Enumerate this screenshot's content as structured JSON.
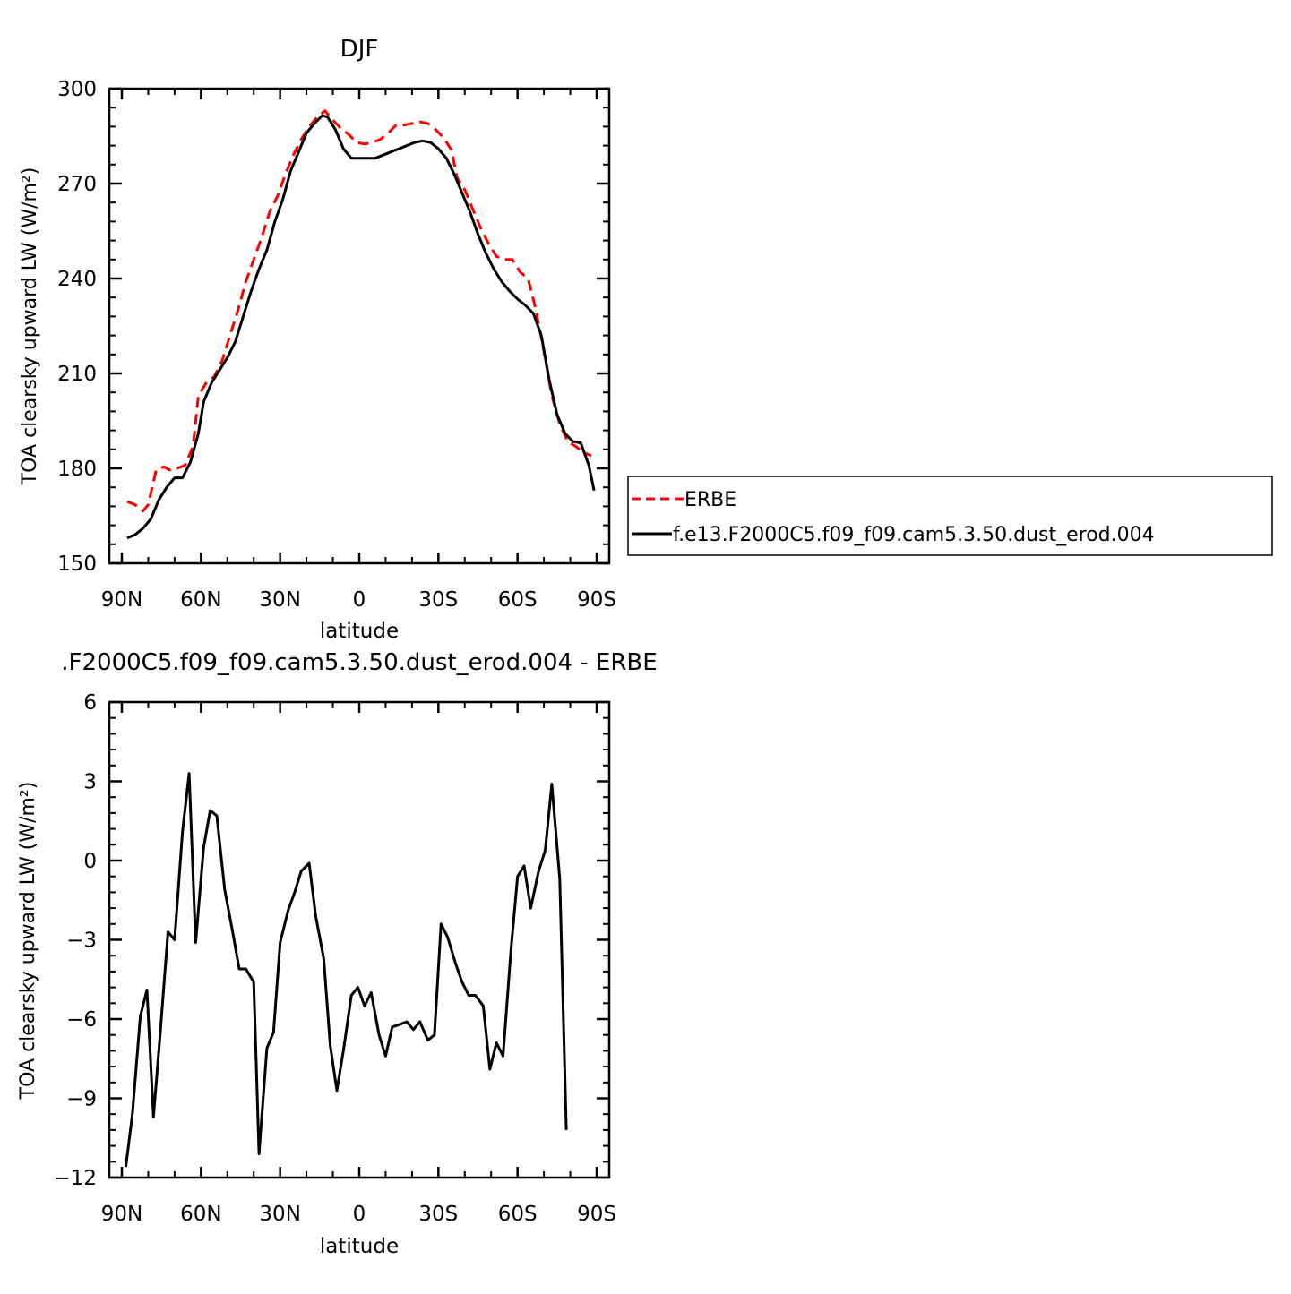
{
  "chart_data": [
    {
      "type": "line",
      "title": "DJF",
      "xlabel": "latitude",
      "ylabel": "TOA clearsky upward LW (W/m²)",
      "xlim": [
        -90,
        90
      ],
      "ylim": [
        150,
        300
      ],
      "x_ticks": [
        -90,
        -60,
        -30,
        0,
        30,
        60,
        90
      ],
      "x_tick_labels": [
        "90N",
        "60N",
        "30N",
        "0",
        "30S",
        "60S",
        "90S"
      ],
      "y_ticks": [
        150,
        180,
        210,
        240,
        270,
        300
      ],
      "y_tick_labels": [
        "150",
        "180",
        "210",
        "240",
        "270",
        "300"
      ],
      "legend_position": "right",
      "series": [
        {
          "name": "ERBE",
          "color": "#ff0000",
          "style": "dashed",
          "points": [
            [
              -88,
              169.5
            ],
            [
              -85,
              168.5
            ],
            [
              -82,
              166.5
            ],
            [
              -80,
              168.5
            ],
            [
              -77,
              179.5
            ],
            [
              -74,
              180.5
            ],
            [
              -72,
              179.5
            ],
            [
              -69,
              180
            ],
            [
              -66,
              181
            ],
            [
              -63,
              187
            ],
            [
              -61,
              203
            ],
            [
              -58,
              207
            ],
            [
              -55,
              209
            ],
            [
              -52,
              214
            ],
            [
              -49,
              222
            ],
            [
              -46,
              230
            ],
            [
              -43,
              239
            ],
            [
              -40,
              246
            ],
            [
              -37,
              253
            ],
            [
              -34,
              261
            ],
            [
              -31,
              266
            ],
            [
              -28,
              273
            ],
            [
              -25,
              279
            ],
            [
              -22,
              284
            ],
            [
              -19,
              288
            ],
            [
              -16,
              291
            ],
            [
              -13,
              293
            ],
            [
              -10,
              290
            ],
            [
              -7,
              287.5
            ],
            [
              -4,
              285.5
            ],
            [
              -1,
              283
            ],
            [
              2,
              282.5
            ],
            [
              5,
              283
            ],
            [
              8,
              284
            ],
            [
              11,
              286
            ],
            [
              14,
              288.5
            ],
            [
              17,
              288.5
            ],
            [
              20,
              289
            ],
            [
              23,
              289.5
            ],
            [
              26,
              289
            ],
            [
              29,
              287
            ],
            [
              32,
              284.5
            ],
            [
              35,
              280.5
            ],
            [
              37,
              272
            ],
            [
              40,
              268
            ],
            [
              43,
              262
            ],
            [
              46,
              256
            ],
            [
              49,
              251
            ],
            [
              52,
              247
            ],
            [
              55,
              246
            ],
            [
              58,
              246
            ],
            [
              61,
              242
            ],
            [
              64,
              240
            ],
            [
              67,
              230
            ],
            [
              70,
              217
            ],
            [
              73,
              203
            ],
            [
              76,
              194
            ],
            [
              79,
              188.5
            ],
            [
              82,
              187
            ],
            [
              85,
              185
            ],
            [
              88,
              184
            ]
          ]
        },
        {
          "name": "f.e13.F2000C5.f09_f09.cam5.3.50.dust_erod.004",
          "color": "#000000",
          "style": "solid",
          "points": [
            [
              -88,
              158
            ],
            [
              -85,
              159
            ],
            [
              -82,
              161
            ],
            [
              -79,
              164
            ],
            [
              -76,
              170
            ],
            [
              -73,
              174
            ],
            [
              -70,
              177
            ],
            [
              -67,
              177
            ],
            [
              -64,
              182
            ],
            [
              -61,
              191
            ],
            [
              -59,
              201
            ],
            [
              -56,
              207
            ],
            [
              -53,
              211
            ],
            [
              -50,
              215
            ],
            [
              -47,
              220
            ],
            [
              -44,
              228
            ],
            [
              -41,
              236
            ],
            [
              -38,
              243
            ],
            [
              -35,
              249
            ],
            [
              -32,
              258
            ],
            [
              -29,
              265
            ],
            [
              -26,
              274
            ],
            [
              -23,
              280
            ],
            [
              -20,
              286
            ],
            [
              -17,
              289
            ],
            [
              -14,
              291.5
            ],
            [
              -12,
              291
            ],
            [
              -9,
              287
            ],
            [
              -6,
              281
            ],
            [
              -3,
              278
            ],
            [
              0,
              278
            ],
            [
              3,
              278
            ],
            [
              6,
              278
            ],
            [
              9,
              279
            ],
            [
              12,
              280
            ],
            [
              15,
              281
            ],
            [
              18,
              282
            ],
            [
              21,
              283
            ],
            [
              24,
              283.5
            ],
            [
              27,
              283
            ],
            [
              30,
              281
            ],
            [
              33,
              278
            ],
            [
              36,
              273
            ],
            [
              39,
              267
            ],
            [
              42,
              261
            ],
            [
              45,
              254
            ],
            [
              48,
              248
            ],
            [
              51,
              243
            ],
            [
              54,
              239
            ],
            [
              57,
              236
            ],
            [
              60,
              233.5
            ],
            [
              63,
              231.5
            ],
            [
              66,
              229
            ],
            [
              69,
              222
            ],
            [
              72,
              208
            ],
            [
              75,
              197
            ],
            [
              78,
              191
            ],
            [
              81,
              188.5
            ],
            [
              84,
              188
            ],
            [
              87,
              181
            ],
            [
              89,
              173
            ]
          ]
        }
      ]
    },
    {
      "type": "line",
      "title": ".F2000C5.f09_f09.cam5.3.50.dust_erod.004 - ERBE",
      "xlabel": "latitude",
      "ylabel": "TOA clearsky upward LW (W/m²)",
      "xlim": [
        -90,
        90
      ],
      "ylim": [
        -12,
        6
      ],
      "x_ticks": [
        -90,
        -60,
        -30,
        0,
        30,
        60,
        90
      ],
      "x_tick_labels": [
        "90N",
        "60N",
        "30N",
        "0",
        "30S",
        "60S",
        "90S"
      ],
      "y_ticks": [
        -12,
        -9,
        -6,
        -3,
        0,
        3,
        6
      ],
      "y_tick_labels": [
        "-12",
        "-9",
        "-6",
        "-3",
        "0",
        "3",
        "6"
      ],
      "series": [
        {
          "color": "#000000",
          "style": "solid",
          "points": [
            [
              -88.5,
              -11.6
            ],
            [
              -86,
              -9.6
            ],
            [
              -83,
              -5.9
            ],
            [
              -80.5,
              -4.9
            ],
            [
              -78,
              -9.7
            ],
            [
              -75.5,
              -6.6
            ],
            [
              -72.5,
              -2.7
            ],
            [
              -70,
              -3
            ],
            [
              -67,
              1.1
            ],
            [
              -64.5,
              3.3
            ],
            [
              -62,
              -3.1
            ],
            [
              -59,
              0.5
            ],
            [
              -56.5,
              1.9
            ],
            [
              -54,
              1.7
            ],
            [
              -51,
              -1.1
            ],
            [
              -48,
              -2.7
            ],
            [
              -45.5,
              -4.1
            ],
            [
              -43,
              -4.1
            ],
            [
              -40,
              -4.6
            ],
            [
              -38,
              -11.1
            ],
            [
              -35,
              -7.1
            ],
            [
              -32.5,
              -6.5
            ],
            [
              -30,
              -3.1
            ],
            [
              -27,
              -1.9
            ],
            [
              -24.5,
              -1.2
            ],
            [
              -22,
              -0.4
            ],
            [
              -19,
              -0.1
            ],
            [
              -16.5,
              -2.1
            ],
            [
              -13.5,
              -3.7
            ],
            [
              -11,
              -7
            ],
            [
              -8.5,
              -8.7
            ],
            [
              -6,
              -7.2
            ],
            [
              -3,
              -5.1
            ],
            [
              -0.5,
              -4.8
            ],
            [
              2,
              -5.5
            ],
            [
              4.5,
              -5
            ],
            [
              7.5,
              -6.6
            ],
            [
              10,
              -7.4
            ],
            [
              12.5,
              -6.3
            ],
            [
              15.5,
              -6.2
            ],
            [
              18,
              -6.1
            ],
            [
              20.5,
              -6.4
            ],
            [
              23,
              -6.1
            ],
            [
              26,
              -6.8
            ],
            [
              28.5,
              -6.6
            ],
            [
              31,
              -2.4
            ],
            [
              33.5,
              -2.9
            ],
            [
              36.5,
              -3.9
            ],
            [
              39,
              -4.6
            ],
            [
              41.5,
              -5.1
            ],
            [
              44,
              -5.1
            ],
            [
              47,
              -5.5
            ],
            [
              49.5,
              -7.9
            ],
            [
              52,
              -6.9
            ],
            [
              54.5,
              -7.4
            ],
            [
              57.5,
              -3.4
            ],
            [
              60,
              -0.6
            ],
            [
              62.5,
              -0.2
            ],
            [
              65,
              -1.8
            ],
            [
              68,
              -0.4
            ],
            [
              70.5,
              0.4
            ],
            [
              73,
              2.9
            ],
            [
              76,
              -0.7
            ],
            [
              78.5,
              -10.2
            ]
          ]
        }
      ]
    }
  ]
}
